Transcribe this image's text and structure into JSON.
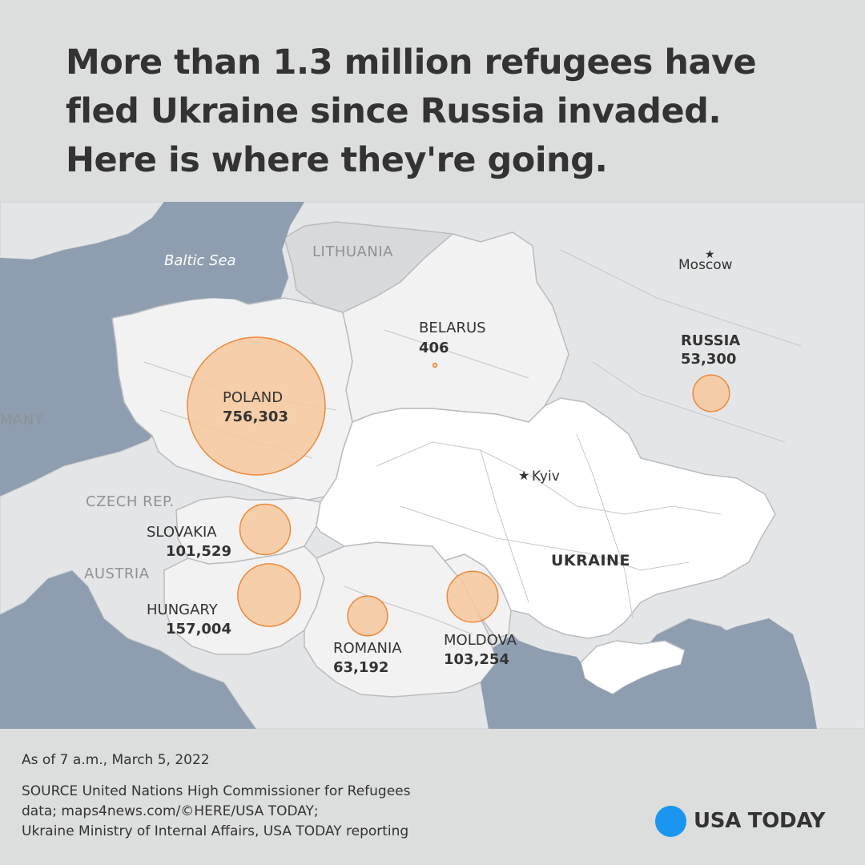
{
  "headline": {
    "line1": "More than 1.3 million refugees have",
    "line2": "fled Ukraine since Russia invaded.",
    "line3": "Here is where they're going."
  },
  "map": {
    "sea_label": "Baltic Sea",
    "places": {
      "lithuania": "LITHUANIA",
      "germany": "MANY",
      "czech": "CZECH REP.",
      "austria": "AUSTRIA",
      "ukraine": "UKRAINE"
    },
    "cities": {
      "moscow": "Moscow",
      "kyiv": "Kyiv",
      "star": "★"
    },
    "refugees": [
      {
        "key": "poland",
        "country": "POLAND",
        "count": "756,303",
        "value": 756303
      },
      {
        "key": "hungary",
        "country": "HUNGARY",
        "count": "157,004",
        "value": 157004
      },
      {
        "key": "moldova",
        "country": "MOLDOVA",
        "count": "103,254",
        "value": 103254
      },
      {
        "key": "slovakia",
        "country": "SLOVAKIA",
        "count": "101,529",
        "value": 101529
      },
      {
        "key": "romania",
        "country": "ROMANIA",
        "count": "63,192",
        "value": 63192
      },
      {
        "key": "russia",
        "country": "RUSSIA",
        "count": "53,300",
        "value": 53300
      },
      {
        "key": "belarus",
        "country": "BELARUS",
        "count": "406",
        "value": 406
      }
    ],
    "colors": {
      "water": "#8e9eb0",
      "land": "#e4e5e6",
      "focus_land": "#f2f2f3",
      "ukraine": "#ffffff",
      "border": "#b9bcc0",
      "bubble_fill": "#f7c89b",
      "bubble_stroke": "#ee8a3c"
    }
  },
  "footer": {
    "as_of": "As of 7 a.m., March 5, 2022",
    "source_line1": "SOURCE United Nations High Commissioner for Refugees",
    "source_line2": "data; maps4news.com/©HERE/USA TODAY;",
    "source_line3": "Ukraine Ministry of Internal Affairs, USA TODAY reporting"
  },
  "brand": {
    "name": "USA TODAY",
    "dot_color": "#1a96f0"
  }
}
